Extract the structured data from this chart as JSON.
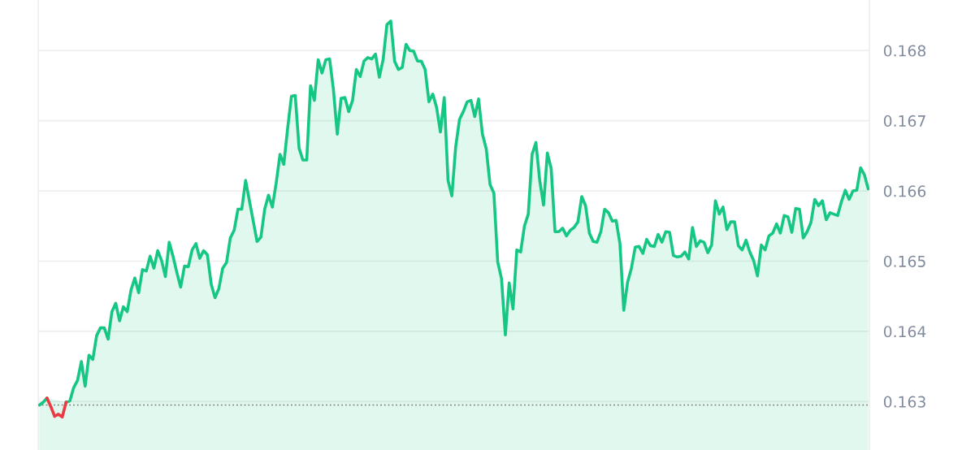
{
  "chart_data": {
    "type": "area",
    "categories": [
      null,
      null,
      null,
      null,
      null,
      null,
      null,
      null,
      null,
      null,
      null,
      null,
      null,
      null,
      null,
      null,
      null,
      null,
      null,
      null,
      null,
      null,
      null,
      null,
      null,
      null,
      null,
      null,
      null,
      null,
      null,
      null,
      null,
      null,
      null,
      null,
      null,
      null,
      null,
      null,
      null,
      null,
      null,
      null,
      null,
      null,
      null,
      null,
      null,
      null,
      null,
      null,
      null,
      null,
      null,
      null,
      null,
      null,
      null,
      null,
      null,
      null,
      null,
      null,
      null,
      null,
      null,
      null,
      null,
      null,
      null,
      null,
      null,
      null,
      null,
      null,
      null,
      null,
      null,
      null,
      null,
      null,
      null,
      null,
      null,
      null,
      null,
      null,
      null,
      null,
      null,
      null,
      null,
      null,
      null,
      null,
      null,
      null,
      null,
      null,
      null,
      null,
      null,
      null,
      null,
      null,
      null,
      null,
      null,
      null,
      null,
      null,
      null,
      null,
      null,
      null,
      null,
      null,
      null,
      null,
      null,
      null,
      null,
      null,
      null,
      null,
      null,
      null,
      null,
      null,
      null,
      null,
      null,
      null,
      null,
      null,
      null,
      null,
      null,
      null,
      null,
      null,
      null,
      null,
      null,
      null,
      null,
      null,
      null,
      null,
      null,
      null,
      null,
      null,
      null,
      null,
      null,
      null,
      null,
      null,
      null,
      null,
      null,
      null,
      null,
      null,
      null,
      null,
      null,
      null,
      null,
      null,
      null,
      null,
      null,
      null,
      null,
      null,
      null,
      null,
      null,
      null,
      null,
      null,
      null,
      null,
      null,
      null,
      null,
      null,
      null,
      null,
      null,
      null,
      null,
      null,
      null,
      null,
      null,
      null,
      null,
      null,
      null,
      null,
      null,
      null,
      null,
      null,
      null,
      null,
      null,
      null,
      null,
      null,
      null,
      null,
      null,
      null
    ],
    "series": [
      {
        "color": "#16c784",
        "values": [
          0.16295,
          0.16299,
          0.16305,
          null,
          null,
          null,
          null,
          0.16299,
          0.16301,
          0.1632,
          0.1633,
          0.16357,
          0.16322,
          0.16366,
          0.1636,
          0.16394,
          0.16405,
          0.16405,
          0.16389,
          0.16428,
          0.1644,
          0.16415,
          0.16435,
          0.16428,
          0.16459,
          0.16476,
          0.16455,
          0.16488,
          0.16486,
          0.16507,
          0.1649,
          0.16515,
          0.16501,
          0.16478,
          0.16527,
          0.16507,
          0.16484,
          0.16463,
          0.16493,
          0.16492,
          0.16516,
          0.16525,
          0.16504,
          0.16515,
          0.16509,
          0.16467,
          0.16448,
          0.16461,
          0.1649,
          0.16498,
          0.16533,
          0.16544,
          0.16574,
          0.16574,
          0.16615,
          0.16586,
          0.16557,
          0.16528,
          0.16534,
          0.16574,
          0.16594,
          0.16577,
          0.16611,
          0.16652,
          0.16638,
          0.16689,
          0.16735,
          0.16736,
          0.16661,
          0.16644,
          0.16644,
          0.1675,
          0.16729,
          0.16787,
          0.16768,
          0.16787,
          0.16788,
          0.16744,
          0.16681,
          0.16732,
          0.16733,
          0.16713,
          0.16729,
          0.16773,
          0.16763,
          0.16785,
          0.1679,
          0.16788,
          0.16795,
          0.16762,
          0.16787,
          0.16837,
          0.16842,
          0.16785,
          0.16773,
          0.16776,
          0.16809,
          0.168,
          0.16799,
          0.16785,
          0.16785,
          0.16773,
          0.16727,
          0.16738,
          0.16719,
          0.16684,
          0.16733,
          0.16615,
          0.16593,
          0.16663,
          0.16702,
          0.16713,
          0.16727,
          0.16729,
          0.16706,
          0.16731,
          0.16681,
          0.1666,
          0.16609,
          0.16597,
          0.16499,
          0.16475,
          0.16395,
          0.16469,
          0.16432,
          0.16516,
          0.16513,
          0.1655,
          0.16567,
          0.16652,
          0.16669,
          0.16615,
          0.1658,
          0.16654,
          0.16632,
          0.16542,
          0.16542,
          0.16547,
          0.16536,
          0.16544,
          0.16548,
          0.16556,
          0.16592,
          0.16579,
          0.1654,
          0.16528,
          0.16527,
          0.16542,
          0.16574,
          0.16569,
          0.16557,
          0.16558,
          0.16525,
          0.1643,
          0.1647,
          0.1649,
          0.1652,
          0.16521,
          0.16511,
          0.16531,
          0.16522,
          0.16521,
          0.16538,
          0.16527,
          0.16542,
          0.16541,
          0.16508,
          0.16506,
          0.16507,
          0.16513,
          0.16503,
          0.16548,
          0.16521,
          0.16529,
          0.16527,
          0.16512,
          0.16523,
          0.16586,
          0.16567,
          0.16577,
          0.16545,
          0.16556,
          0.16556,
          0.16522,
          0.16516,
          0.1653,
          0.16513,
          0.16501,
          0.16479,
          0.16523,
          0.16516,
          0.16536,
          0.1654,
          0.16553,
          0.1654,
          0.16565,
          0.16563,
          0.16541,
          0.16575,
          0.16574,
          0.16533,
          0.16542,
          0.16555,
          0.16588,
          0.16579,
          0.16586,
          0.16559,
          0.16569,
          0.16567,
          0.16565,
          0.16585,
          0.16601,
          0.16588,
          0.166,
          0.16601,
          0.16633,
          0.16623,
          0.16603
        ]
      },
      {
        "type": "line",
        "color": "#ea3943",
        "values": [
          null,
          null,
          0.16305,
          0.16293,
          0.16279,
          0.16282,
          0.16278,
          0.16299,
          null,
          null,
          null,
          null,
          null,
          null,
          null,
          null,
          null,
          null,
          null,
          null,
          null,
          null,
          null,
          null,
          null,
          null,
          null,
          null,
          null,
          null,
          null,
          null,
          null,
          null,
          null,
          null,
          null,
          null,
          null,
          null,
          null,
          null,
          null,
          null,
          null,
          null,
          null,
          null,
          null,
          null,
          null,
          null,
          null,
          null,
          null,
          null,
          null,
          null,
          null,
          null,
          null,
          null,
          null,
          null,
          null,
          null,
          null,
          null,
          null,
          null,
          null,
          null,
          null,
          null,
          null,
          null,
          null,
          null,
          null,
          null,
          null,
          null,
          null,
          null,
          null,
          null,
          null,
          null,
          null,
          null,
          null,
          null,
          null,
          null,
          null,
          null,
          null,
          null,
          null,
          null,
          null,
          null,
          null,
          null,
          null,
          null,
          null,
          null,
          null,
          null,
          null,
          null,
          null,
          null,
          null,
          null,
          null,
          null,
          null,
          null,
          null,
          null,
          null,
          null,
          null,
          null,
          null,
          null,
          null,
          null,
          null,
          null,
          null,
          null,
          null,
          null,
          null,
          null,
          null,
          null,
          null,
          null,
          null,
          null,
          null,
          null,
          null,
          null,
          null,
          null,
          null,
          null,
          null,
          null,
          null,
          null,
          null,
          null,
          null,
          null,
          null,
          null,
          null,
          null,
          null,
          null,
          null,
          null,
          null,
          null,
          null,
          null,
          null,
          null,
          null,
          null,
          null,
          null,
          null,
          null,
          null,
          null,
          null,
          null,
          null,
          null,
          null,
          null,
          null,
          null,
          null,
          null,
          null,
          null,
          null,
          null,
          null,
          null,
          null,
          null,
          null,
          null,
          null,
          null,
          null,
          null,
          null,
          null,
          null,
          null,
          null,
          null,
          null,
          null,
          null,
          null,
          null,
          null
        ]
      }
    ],
    "ylim": [
      0.16231,
      0.16872
    ],
    "yticks": [
      0.163,
      0.164,
      0.165,
      0.166,
      0.167,
      0.168
    ],
    "ref_lines": [
      {
        "axis": "y",
        "value": 0.16295,
        "color": "#888888",
        "line_style": "dotted"
      }
    ],
    "grid": "y",
    "tick_labels": "y",
    "line_style": "solid",
    "marker": "none"
  }
}
